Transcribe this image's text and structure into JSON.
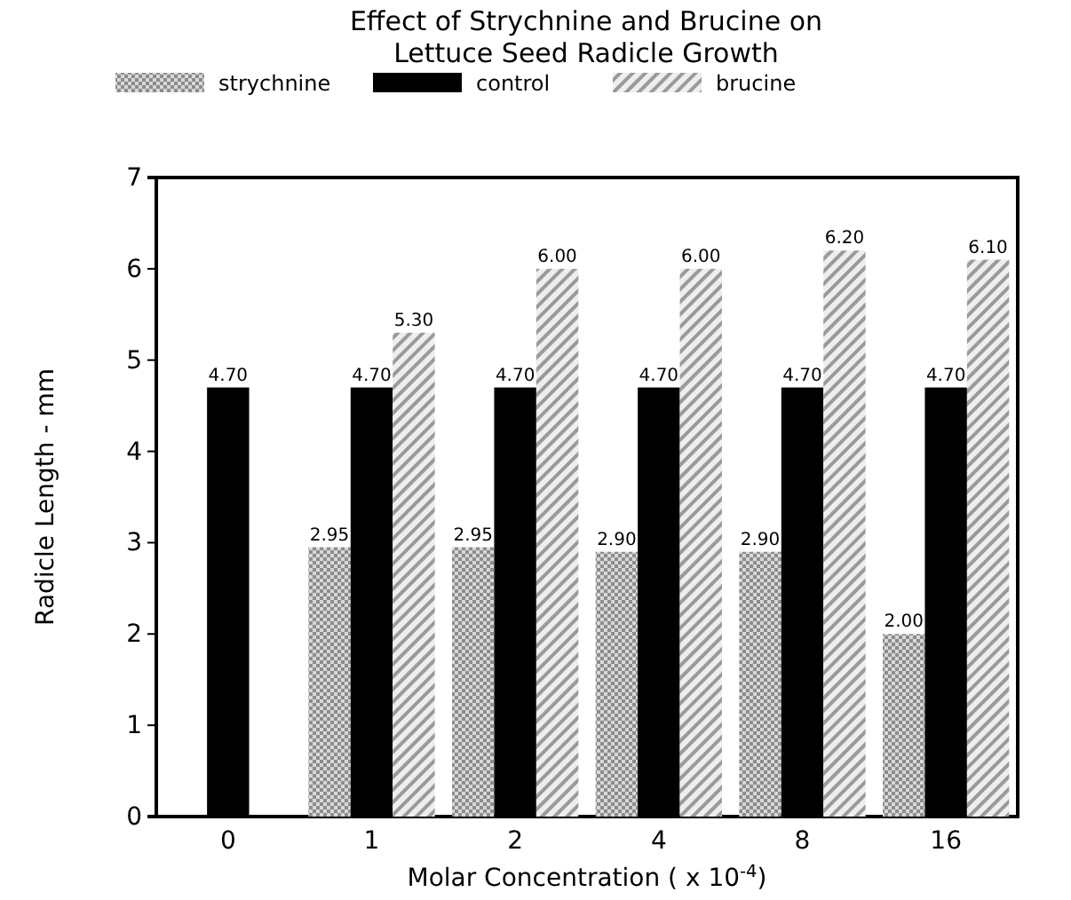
{
  "chart_data": {
    "type": "bar",
    "title": "Effect of Strychnine and Brucine on Lettuce Seed Radicle Growth",
    "xlabel": "Molar Concentration ( x 10$^{-4}$)",
    "ylabel": "Radicle Length - mm",
    "categories": [
      "0",
      "1",
      "2",
      "4",
      "8",
      "16"
    ],
    "series": [
      {
        "name": "strychnine",
        "color": "#8c8c8c",
        "values": [
          null,
          2.95,
          2.95,
          2.9,
          2.9,
          2.0
        ],
        "value_labels": [
          null,
          "2.95",
          "2.95",
          "2.90",
          "2.90",
          "2.00"
        ]
      },
      {
        "name": "control",
        "color": "#000000",
        "values": [
          4.7,
          4.7,
          4.7,
          4.7,
          4.7,
          4.7
        ],
        "value_labels": [
          "4.70",
          "4.70",
          "4.70",
          "4.70",
          "4.70",
          "4.70"
        ]
      },
      {
        "name": "brucine",
        "color": "#9a9a9a",
        "values": [
          null,
          5.3,
          6.0,
          6.0,
          6.2,
          6.1
        ],
        "value_labels": [
          null,
          "5.30",
          "6.00",
          "6.00",
          "6.20",
          "6.10"
        ]
      }
    ],
    "ylim": [
      0,
      7
    ],
    "yticks": [
      0,
      1,
      2,
      3,
      4,
      5,
      6,
      7
    ],
    "grid": false,
    "legend": "top"
  }
}
